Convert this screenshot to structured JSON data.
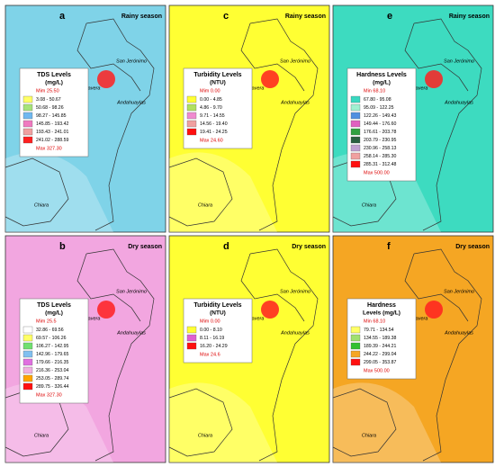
{
  "panels": [
    {
      "letter": "a",
      "season": "Rainy season",
      "fill": "#7fd3e8",
      "legend": {
        "title": "TDS Levels",
        "unit": "(mg/L)",
        "min": "Mim 25.50",
        "max": "Max 327.30",
        "items": [
          {
            "label": "3.08 - 50.67",
            "color": "#ffff66"
          },
          {
            "label": "50.68 - 98.26",
            "color": "#a6e37a"
          },
          {
            "label": "98.27 - 145.85",
            "color": "#6fb8f0"
          },
          {
            "label": "145.85 - 193.42",
            "color": "#f07ac0"
          },
          {
            "label": "193.43 - 241.01",
            "color": "#f0a0a0"
          },
          {
            "label": "241.02 - 288.59",
            "color": "#ff2020"
          }
        ]
      }
    },
    {
      "letter": "c",
      "season": "Rainy season",
      "fill": "#ffff33",
      "legend": {
        "title": "Turbidity Levels",
        "unit": "(NTU)",
        "min": "Mim 0.00",
        "max": "Max 24.60",
        "items": [
          {
            "label": "0.00 - 4.85",
            "color": "#ffff33"
          },
          {
            "label": "4.86 - 9.70",
            "color": "#b0e060"
          },
          {
            "label": "9.71 - 14.55",
            "color": "#f08ad0"
          },
          {
            "label": "14.56 - 19.40",
            "color": "#f0a0a0"
          },
          {
            "label": "19.41 - 24.25",
            "color": "#ff1010"
          }
        ]
      }
    },
    {
      "letter": "e",
      "season": "Rainy season",
      "fill": "#3ddbc0",
      "legend": {
        "title": "Hardness Levels",
        "unit": "(mg/L)",
        "min": "Min 68.10",
        "max": "Max 500.00",
        "items": [
          {
            "label": "67.80 - 95.08",
            "color": "#38d8c0"
          },
          {
            "label": "95.09 - 122.25",
            "color": "#a0f0d0"
          },
          {
            "label": "122.26 - 149.43",
            "color": "#5090e0"
          },
          {
            "label": "149.44 - 176.60",
            "color": "#e060c0"
          },
          {
            "label": "176.61 - 203.78",
            "color": "#30a040"
          },
          {
            "label": "203.79 - 230.95",
            "color": "#2a6040"
          },
          {
            "label": "230.96 - 258.13",
            "color": "#c0a0d0"
          },
          {
            "label": "258.14 - 285.30",
            "color": "#f0a0a0"
          },
          {
            "label": "285.31 - 312.48",
            "color": "#ff1010"
          }
        ]
      }
    },
    {
      "letter": "b",
      "season": "Dry season",
      "fill": "#f2a6e0",
      "legend": {
        "title": "TDS Levels",
        "unit": "(mg/L)",
        "min": "Mim 25.5",
        "max": "Max 327.30",
        "items": [
          {
            "label": "32.86 - 69.56",
            "color": "#ffffff"
          },
          {
            "label": "69.57 - 106.26",
            "color": "#ffff66"
          },
          {
            "label": "106.27 - 142.95",
            "color": "#70e070"
          },
          {
            "label": "142.96 - 179.65",
            "color": "#80c0f0"
          },
          {
            "label": "179.66 - 216.35",
            "color": "#e070e0"
          },
          {
            "label": "216.36 - 253.04",
            "color": "#f0b0e0"
          },
          {
            "label": "253.05 - 289.74",
            "color": "#ffa500"
          },
          {
            "label": "289.75 - 326.44",
            "color": "#ff1010"
          }
        ]
      }
    },
    {
      "letter": "d",
      "season": "Dry season",
      "fill": "#ffff33",
      "legend": {
        "title": "Turbidity Levels",
        "unit": "(NTU)",
        "min": "Mim 0.00",
        "max": "Max 24.6",
        "items": [
          {
            "label": "0.00 - 8.10",
            "color": "#ffff33"
          },
          {
            "label": "8.11 - 16.19",
            "color": "#e060d0"
          },
          {
            "label": "16.20 - 24.29",
            "color": "#ff1010"
          }
        ]
      }
    },
    {
      "letter": "f",
      "season": "Dry season",
      "fill": "#f5a623",
      "legend": {
        "title": "Hardness",
        "unit": "Levels (mg/L)",
        "min": "Min 68.10",
        "max": "Max 500.00",
        "items": [
          {
            "label": "79.71 - 134.54",
            "color": "#ffff66"
          },
          {
            "label": "134.55 - 189.38",
            "color": "#a0e070"
          },
          {
            "label": "189.39 - 244.21",
            "color": "#30c030"
          },
          {
            "label": "244.22 - 299.04",
            "color": "#f5a623"
          },
          {
            "label": "299.05 - 353.87",
            "color": "#ff1010"
          }
        ]
      }
    }
  ],
  "places": [
    "Talavera",
    "San Jerónimo",
    "Andahuaylas",
    "Chiara"
  ]
}
